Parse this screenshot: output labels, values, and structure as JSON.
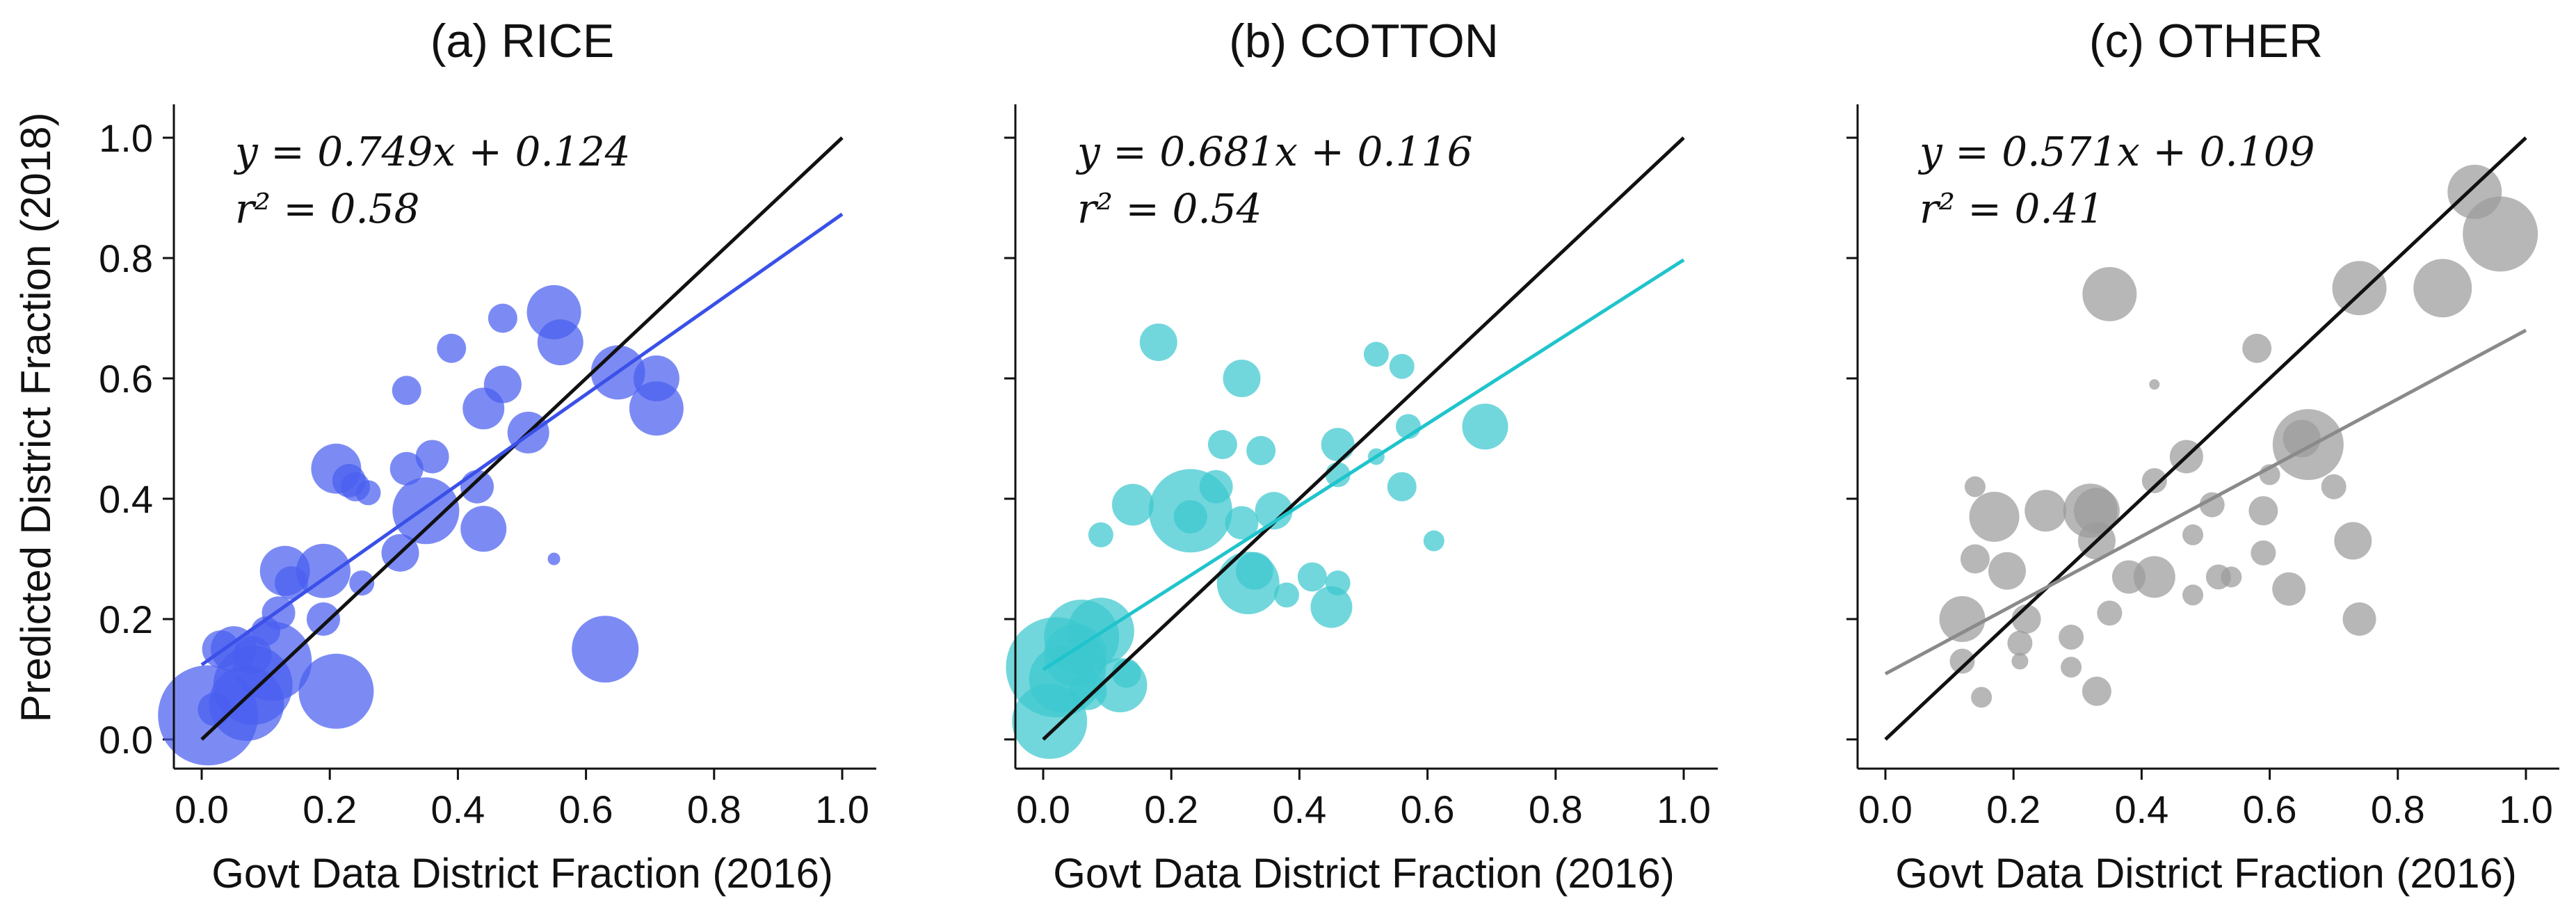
{
  "chart_data": [
    {
      "type": "scatter",
      "title": "(a)  RICE",
      "xlabel": "Govt Data District Fraction (2016)",
      "ylabel": "Predicted District Fraction (2018)",
      "xlim": [
        0.0,
        1.0
      ],
      "ylim": [
        0.0,
        1.0
      ],
      "xticks": [
        "0.0",
        "0.2",
        "0.4",
        "0.6",
        "0.8",
        "1.0"
      ],
      "yticks": [
        "0.0",
        "0.2",
        "0.4",
        "0.6",
        "0.8",
        "1.0"
      ],
      "color": "#4a5ef0",
      "fit_color": "#3a50e8",
      "equation": "y = 0.749x + 0.124",
      "r2": "r² = 0.58",
      "fit": {
        "slope": 0.749,
        "intercept": 0.124
      },
      "identity_line": true,
      "points": [
        {
          "x": 0.01,
          "y": 0.04,
          "size": 2.4
        },
        {
          "x": 0.07,
          "y": 0.06,
          "size": 1.8
        },
        {
          "x": 0.08,
          "y": 0.09,
          "size": 1.9
        },
        {
          "x": 0.11,
          "y": 0.13,
          "size": 1.9
        },
        {
          "x": 0.05,
          "y": 0.15,
          "size": 1.1
        },
        {
          "x": 0.03,
          "y": 0.15,
          "size": 0.9
        },
        {
          "x": 0.08,
          "y": 0.14,
          "size": 0.9
        },
        {
          "x": 0.1,
          "y": 0.18,
          "size": 0.7
        },
        {
          "x": 0.12,
          "y": 0.21,
          "size": 0.8
        },
        {
          "x": 0.02,
          "y": 0.05,
          "size": 0.8
        },
        {
          "x": 0.13,
          "y": 0.28,
          "size": 1.2
        },
        {
          "x": 0.14,
          "y": 0.26,
          "size": 0.8
        },
        {
          "x": 0.19,
          "y": 0.28,
          "size": 1.3
        },
        {
          "x": 0.19,
          "y": 0.2,
          "size": 0.8
        },
        {
          "x": 0.21,
          "y": 0.08,
          "size": 1.8
        },
        {
          "x": 0.21,
          "y": 0.45,
          "size": 1.2
        },
        {
          "x": 0.23,
          "y": 0.43,
          "size": 0.8
        },
        {
          "x": 0.24,
          "y": 0.42,
          "size": 0.7
        },
        {
          "x": 0.26,
          "y": 0.41,
          "size": 0.6
        },
        {
          "x": 0.25,
          "y": 0.26,
          "size": 0.6
        },
        {
          "x": 0.31,
          "y": 0.31,
          "size": 0.9
        },
        {
          "x": 0.32,
          "y": 0.45,
          "size": 0.8
        },
        {
          "x": 0.32,
          "y": 0.58,
          "size": 0.7
        },
        {
          "x": 0.35,
          "y": 0.38,
          "size": 1.6
        },
        {
          "x": 0.36,
          "y": 0.47,
          "size": 0.8
        },
        {
          "x": 0.39,
          "y": 0.65,
          "size": 0.7
        },
        {
          "x": 0.43,
          "y": 0.42,
          "size": 0.8
        },
        {
          "x": 0.44,
          "y": 0.35,
          "size": 1.1
        },
        {
          "x": 0.44,
          "y": 0.55,
          "size": 1.0
        },
        {
          "x": 0.47,
          "y": 0.59,
          "size": 0.9
        },
        {
          "x": 0.47,
          "y": 0.7,
          "size": 0.7
        },
        {
          "x": 0.51,
          "y": 0.51,
          "size": 1.0
        },
        {
          "x": 0.55,
          "y": 0.71,
          "size": 1.3
        },
        {
          "x": 0.56,
          "y": 0.66,
          "size": 1.1
        },
        {
          "x": 0.55,
          "y": 0.3,
          "size": 0.3
        },
        {
          "x": 0.63,
          "y": 0.15,
          "size": 1.6
        },
        {
          "x": 0.65,
          "y": 0.61,
          "size": 1.3
        },
        {
          "x": 0.71,
          "y": 0.6,
          "size": 1.1
        },
        {
          "x": 0.71,
          "y": 0.55,
          "size": 1.3
        }
      ]
    },
    {
      "type": "scatter",
      "title": "(b)  COTTON",
      "xlabel": "Govt Data District Fraction (2016)",
      "ylabel": "",
      "xlim": [
        0.0,
        1.0
      ],
      "ylim": [
        0.0,
        1.0
      ],
      "xticks": [
        "0.0",
        "0.2",
        "0.4",
        "0.6",
        "0.8",
        "1.0"
      ],
      "yticks": [
        "0.0",
        "0.2",
        "0.4",
        "0.6",
        "0.8",
        "1.0"
      ],
      "color": "#3cc8cf",
      "fit_color": "#1fc4cc",
      "equation": "y = 0.681x + 0.116",
      "r2": "r² = 0.54",
      "fit": {
        "slope": 0.681,
        "intercept": 0.116
      },
      "identity_line": true,
      "points": [
        {
          "x": 0.01,
          "y": 0.03,
          "size": 1.8
        },
        {
          "x": 0.02,
          "y": 0.12,
          "size": 2.4
        },
        {
          "x": 0.03,
          "y": 0.1,
          "size": 1.6
        },
        {
          "x": 0.05,
          "y": 0.14,
          "size": 1.5
        },
        {
          "x": 0.06,
          "y": 0.17,
          "size": 1.8
        },
        {
          "x": 0.09,
          "y": 0.18,
          "size": 1.6
        },
        {
          "x": 0.07,
          "y": 0.08,
          "size": 0.9
        },
        {
          "x": 0.09,
          "y": 0.34,
          "size": 0.6
        },
        {
          "x": 0.12,
          "y": 0.09,
          "size": 1.3
        },
        {
          "x": 0.13,
          "y": 0.11,
          "size": 0.7
        },
        {
          "x": 0.14,
          "y": 0.39,
          "size": 1.0
        },
        {
          "x": 0.18,
          "y": 0.66,
          "size": 0.9
        },
        {
          "x": 0.23,
          "y": 0.38,
          "size": 2.0
        },
        {
          "x": 0.23,
          "y": 0.37,
          "size": 0.8
        },
        {
          "x": 0.27,
          "y": 0.42,
          "size": 0.8
        },
        {
          "x": 0.28,
          "y": 0.49,
          "size": 0.7
        },
        {
          "x": 0.31,
          "y": 0.6,
          "size": 0.9
        },
        {
          "x": 0.31,
          "y": 0.36,
          "size": 0.8
        },
        {
          "x": 0.32,
          "y": 0.26,
          "size": 1.5
        },
        {
          "x": 0.33,
          "y": 0.28,
          "size": 0.9
        },
        {
          "x": 0.34,
          "y": 0.48,
          "size": 0.7
        },
        {
          "x": 0.36,
          "y": 0.38,
          "size": 0.9
        },
        {
          "x": 0.38,
          "y": 0.24,
          "size": 0.6
        },
        {
          "x": 0.42,
          "y": 0.27,
          "size": 0.7
        },
        {
          "x": 0.45,
          "y": 0.22,
          "size": 1.0
        },
        {
          "x": 0.46,
          "y": 0.26,
          "size": 0.6
        },
        {
          "x": 0.46,
          "y": 0.44,
          "size": 0.6
        },
        {
          "x": 0.46,
          "y": 0.49,
          "size": 0.8
        },
        {
          "x": 0.52,
          "y": 0.47,
          "size": 0.4
        },
        {
          "x": 0.52,
          "y": 0.64,
          "size": 0.6
        },
        {
          "x": 0.56,
          "y": 0.62,
          "size": 0.6
        },
        {
          "x": 0.56,
          "y": 0.42,
          "size": 0.7
        },
        {
          "x": 0.57,
          "y": 0.52,
          "size": 0.6
        },
        {
          "x": 0.61,
          "y": 0.33,
          "size": 0.5
        },
        {
          "x": 0.69,
          "y": 0.52,
          "size": 1.1
        }
      ]
    },
    {
      "type": "scatter",
      "title": "(c)  OTHER",
      "xlabel": "Govt Data District Fraction (2016)",
      "ylabel": "",
      "xlim": [
        0.0,
        1.0
      ],
      "ylim": [
        0.0,
        1.0
      ],
      "xticks": [
        "0.0",
        "0.2",
        "0.4",
        "0.6",
        "0.8",
        "1.0"
      ],
      "yticks": [
        "0.0",
        "0.2",
        "0.4",
        "0.6",
        "0.8",
        "1.0"
      ],
      "color": "#9b9b9b",
      "fit_color": "#8a8a8a",
      "equation": "y = 0.571x + 0.109",
      "r2": "r² = 0.41",
      "fit": {
        "slope": 0.571,
        "intercept": 0.109
      },
      "identity_line": true,
      "points": [
        {
          "x": 0.12,
          "y": 0.2,
          "size": 1.1
        },
        {
          "x": 0.12,
          "y": 0.13,
          "size": 0.6
        },
        {
          "x": 0.14,
          "y": 0.3,
          "size": 0.7
        },
        {
          "x": 0.14,
          "y": 0.42,
          "size": 0.5
        },
        {
          "x": 0.15,
          "y": 0.07,
          "size": 0.5
        },
        {
          "x": 0.17,
          "y": 0.37,
          "size": 1.2
        },
        {
          "x": 0.19,
          "y": 0.28,
          "size": 0.9
        },
        {
          "x": 0.21,
          "y": 0.16,
          "size": 0.6
        },
        {
          "x": 0.21,
          "y": 0.13,
          "size": 0.4
        },
        {
          "x": 0.22,
          "y": 0.2,
          "size": 0.7
        },
        {
          "x": 0.25,
          "y": 0.38,
          "size": 1.0
        },
        {
          "x": 0.29,
          "y": 0.17,
          "size": 0.6
        },
        {
          "x": 0.29,
          "y": 0.12,
          "size": 0.5
        },
        {
          "x": 0.32,
          "y": 0.38,
          "size": 1.3
        },
        {
          "x": 0.33,
          "y": 0.38,
          "size": 1.1
        },
        {
          "x": 0.33,
          "y": 0.33,
          "size": 0.9
        },
        {
          "x": 0.33,
          "y": 0.08,
          "size": 0.7
        },
        {
          "x": 0.35,
          "y": 0.74,
          "size": 1.3
        },
        {
          "x": 0.35,
          "y": 0.21,
          "size": 0.6
        },
        {
          "x": 0.38,
          "y": 0.27,
          "size": 0.8
        },
        {
          "x": 0.42,
          "y": 0.27,
          "size": 1.0
        },
        {
          "x": 0.42,
          "y": 0.43,
          "size": 0.6
        },
        {
          "x": 0.42,
          "y": 0.59,
          "size": 0.25
        },
        {
          "x": 0.47,
          "y": 0.47,
          "size": 0.8
        },
        {
          "x": 0.48,
          "y": 0.34,
          "size": 0.5
        },
        {
          "x": 0.48,
          "y": 0.24,
          "size": 0.5
        },
        {
          "x": 0.51,
          "y": 0.39,
          "size": 0.6
        },
        {
          "x": 0.52,
          "y": 0.27,
          "size": 0.6
        },
        {
          "x": 0.54,
          "y": 0.27,
          "size": 0.5
        },
        {
          "x": 0.58,
          "y": 0.65,
          "size": 0.7
        },
        {
          "x": 0.59,
          "y": 0.38,
          "size": 0.7
        },
        {
          "x": 0.59,
          "y": 0.31,
          "size": 0.6
        },
        {
          "x": 0.6,
          "y": 0.44,
          "size": 0.5
        },
        {
          "x": 0.63,
          "y": 0.25,
          "size": 0.8
        },
        {
          "x": 0.65,
          "y": 0.5,
          "size": 0.9
        },
        {
          "x": 0.66,
          "y": 0.49,
          "size": 1.7
        },
        {
          "x": 0.7,
          "y": 0.42,
          "size": 0.6
        },
        {
          "x": 0.73,
          "y": 0.33,
          "size": 0.9
        },
        {
          "x": 0.74,
          "y": 0.2,
          "size": 0.8
        },
        {
          "x": 0.74,
          "y": 0.75,
          "size": 1.3
        },
        {
          "x": 0.87,
          "y": 0.75,
          "size": 1.4
        },
        {
          "x": 0.92,
          "y": 0.91,
          "size": 1.3
        },
        {
          "x": 0.96,
          "y": 0.84,
          "size": 1.8
        }
      ]
    }
  ]
}
